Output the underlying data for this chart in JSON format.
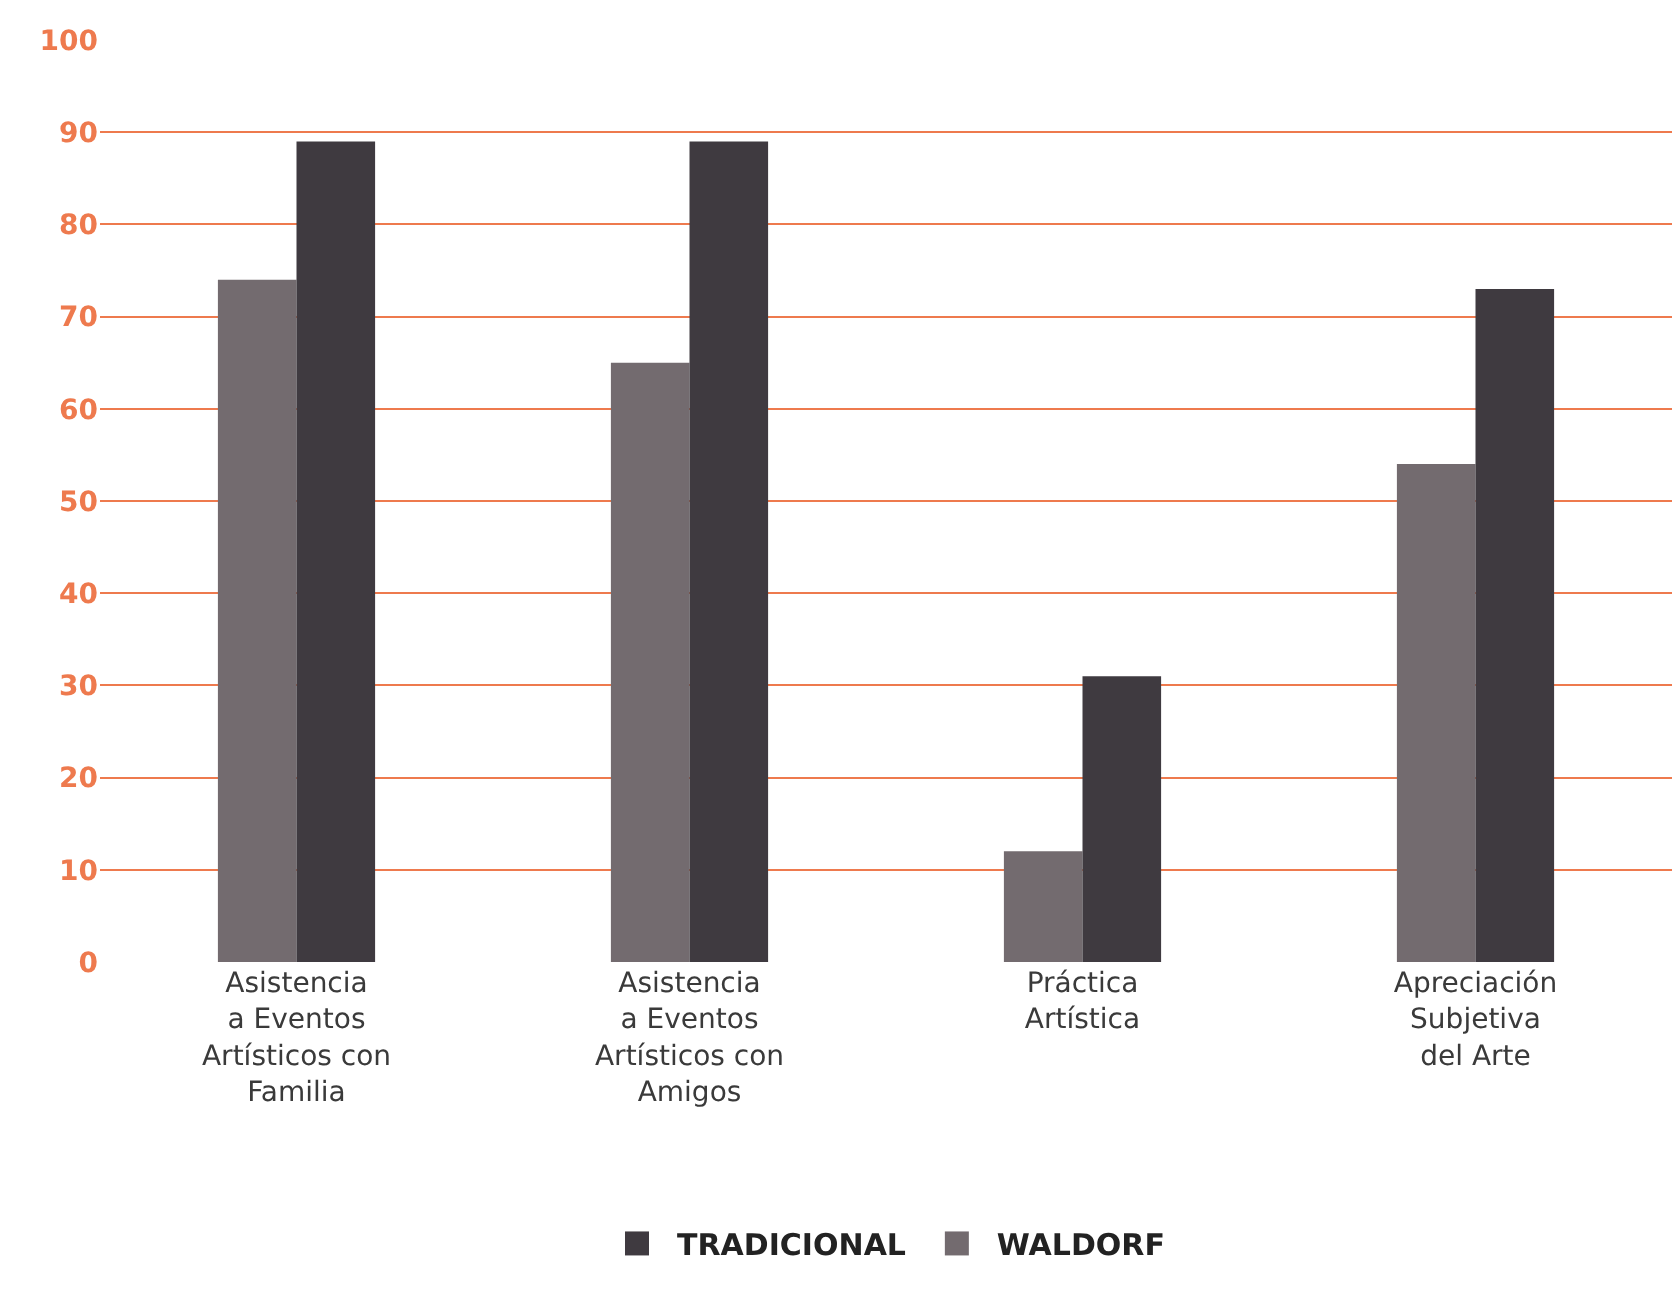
{
  "chart_data": {
    "type": "bar",
    "categories": [
      "Asistencia\na Eventos\nArtísticos con\nFamilia",
      "Asistencia\na Eventos\nArtísticos con\nAmigos",
      "Práctica\nArtística",
      "Apreciación\nSubjetiva\ndel Arte"
    ],
    "series": [
      {
        "name": "WALDORF",
        "color": "#736b6f",
        "values": [
          74,
          65,
          12,
          54
        ]
      },
      {
        "name": "TRADICIONAL",
        "color": "#3f3a40",
        "values": [
          89,
          89,
          31,
          73
        ]
      }
    ],
    "ylim": [
      0,
      100
    ],
    "yticks": [
      0,
      10,
      20,
      30,
      40,
      50,
      60,
      70,
      80,
      90,
      100
    ],
    "grid": "y",
    "legend": "bottom"
  }
}
